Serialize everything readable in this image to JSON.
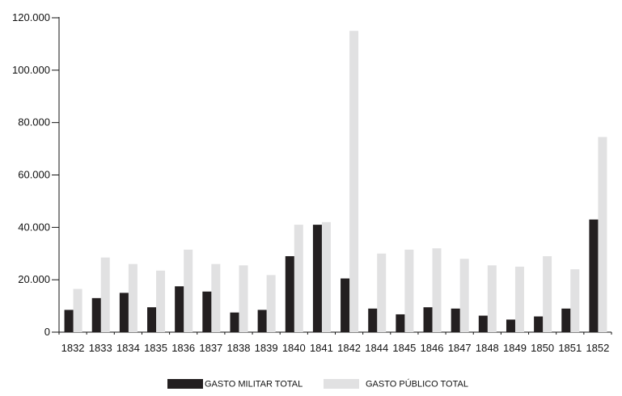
{
  "chart_data": {
    "type": "bar",
    "categories": [
      "1832",
      "1833",
      "1834",
      "1835",
      "1836",
      "1837",
      "1838",
      "1839",
      "1840",
      "1841",
      "1842",
      "1844",
      "1845",
      "1846",
      "1847",
      "1848",
      "1849",
      "1850",
      "1851",
      "1852"
    ],
    "series": [
      {
        "name": "GASTO MILITAR TOTAL",
        "color": "#231f20",
        "values": [
          8500,
          13000,
          15000,
          9500,
          17500,
          15500,
          7500,
          8500,
          29000,
          41000,
          20500,
          9000,
          6800,
          9500,
          9000,
          6300,
          4800,
          6000,
          9000,
          43000
        ]
      },
      {
        "name": "GASTO PÚBLICO TOTAL",
        "color": "#e1e1e2",
        "values": [
          16500,
          28500,
          26000,
          23500,
          31500,
          26000,
          25500,
          21800,
          41000,
          42000,
          115000,
          30000,
          31500,
          32000,
          28000,
          25500,
          25000,
          29000,
          24000,
          74500
        ]
      }
    ],
    "y_ticks": [
      "0",
      "20.000",
      "40.000",
      "60.000",
      "80.000",
      "100.000",
      "120.000"
    ],
    "ylim": [
      0,
      120000
    ],
    "grid": false,
    "legend_position": "bottom"
  }
}
